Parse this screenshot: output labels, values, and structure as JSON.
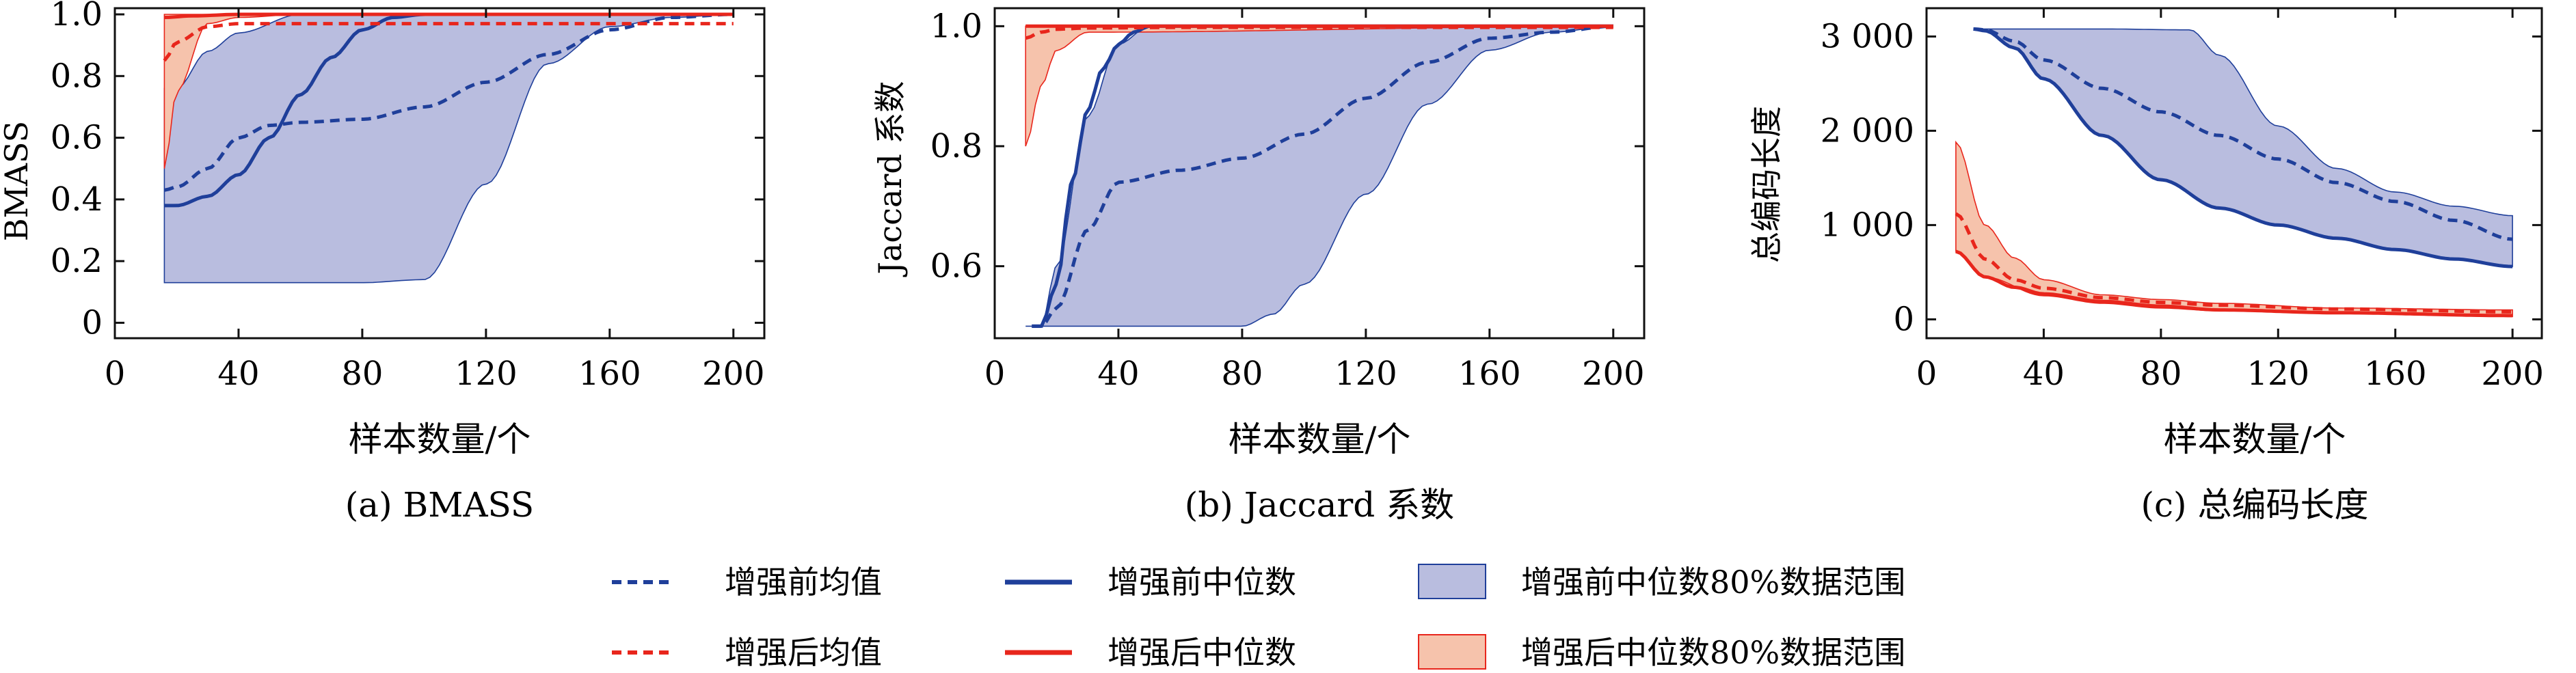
{
  "legend": [
    {
      "key": "before_mean",
      "label": "增强前均值",
      "style": "dash",
      "color": "#1f3f9a"
    },
    {
      "key": "before_median",
      "label": "增强前中位数",
      "style": "solid",
      "color": "#1f3f9a"
    },
    {
      "key": "before_band",
      "label": "增强前中位数80%数据范围",
      "style": "band",
      "color": "#1f3f9a",
      "fill": "#b9bddf"
    },
    {
      "key": "after_mean",
      "label": "增强后均值",
      "style": "dash",
      "color": "#e8261c"
    },
    {
      "key": "after_median",
      "label": "增强后中位数",
      "style": "solid",
      "color": "#e8261c"
    },
    {
      "key": "after_band",
      "label": "增强后中位数80%数据范围",
      "style": "band",
      "color": "#e8261c",
      "fill": "#f6c3ac"
    }
  ],
  "chart_data": [
    {
      "type": "line",
      "caption": "(a) BMASS",
      "xlabel": "样本数量/个",
      "ylabel": "BMASS",
      "xlim": [
        0,
        210
      ],
      "ylim": [
        -0.05,
        1.02
      ],
      "xticks": [
        0,
        40,
        80,
        120,
        160,
        200
      ],
      "xtick_labels": [
        "0",
        "40",
        "80",
        "120",
        "160",
        "200"
      ],
      "yticks": [
        0,
        0.2,
        0.4,
        0.6,
        0.8,
        1.0
      ],
      "ytick_labels": [
        "0",
        "0.2",
        "0.4",
        "0.6",
        "0.8",
        "1.0"
      ],
      "series": [
        {
          "key": "before_band",
          "lower": {
            "x": [
              16,
              40,
              80,
              100,
              120,
              140,
              160,
              180,
              200
            ],
            "y": [
              0.13,
              0.13,
              0.13,
              0.14,
              0.45,
              0.84,
              0.96,
              0.99,
              1.0
            ]
          },
          "upper": {
            "x": [
              16,
              20,
              30,
              40,
              60,
              80,
              200
            ],
            "y": [
              0.76,
              0.76,
              0.88,
              0.94,
              1.0,
              1.0,
              1.0
            ]
          }
        },
        {
          "key": "after_band",
          "lower": {
            "x": [
              16,
              20,
              30,
              40,
              60,
              200
            ],
            "y": [
              0.5,
              0.75,
              0.97,
              0.99,
              1.0,
              1.0
            ]
          },
          "upper": {
            "x": [
              16,
              30,
              60,
              200
            ],
            "y": [
              1.0,
              1.0,
              1.0,
              1.0
            ]
          }
        },
        {
          "key": "before_median",
          "x": [
            16,
            20,
            30,
            40,
            50,
            60,
            70,
            80,
            90,
            100,
            120,
            160,
            200
          ],
          "y": [
            0.38,
            0.38,
            0.41,
            0.48,
            0.6,
            0.74,
            0.86,
            0.95,
            0.99,
            1.0,
            1.0,
            1.0,
            1.0
          ]
        },
        {
          "key": "before_mean",
          "x": [
            16,
            20,
            30,
            40,
            50,
            60,
            80,
            100,
            120,
            140,
            160,
            180,
            200
          ],
          "y": [
            0.43,
            0.44,
            0.5,
            0.6,
            0.64,
            0.65,
            0.66,
            0.7,
            0.78,
            0.87,
            0.95,
            0.99,
            1.0
          ]
        },
        {
          "key": "after_median",
          "x": [
            16,
            25,
            40,
            60,
            100,
            200
          ],
          "y": [
            0.99,
            0.995,
            1.0,
            1.0,
            1.0,
            1.0
          ]
        },
        {
          "key": "after_mean",
          "x": [
            16,
            20,
            30,
            40,
            60,
            100,
            200
          ],
          "y": [
            0.85,
            0.91,
            0.96,
            0.97,
            0.97,
            0.97,
            0.97
          ]
        }
      ]
    },
    {
      "type": "line",
      "caption": "(b) Jaccard 系数",
      "xlabel": "样本数量/个",
      "ylabel": "Jaccard 系数",
      "xlim": [
        0,
        210
      ],
      "ylim": [
        0.48,
        1.03
      ],
      "xticks": [
        0,
        40,
        80,
        120,
        160,
        200
      ],
      "xtick_labels": [
        "0",
        "40",
        "80",
        "120",
        "160",
        "200"
      ],
      "yticks": [
        0.6,
        0.8,
        1.0
      ],
      "ytick_labels": [
        "0.6",
        "0.8",
        "1.0"
      ],
      "series": [
        {
          "key": "before_band",
          "lower": {
            "x": [
              10,
              20,
              40,
              60,
              80,
              90,
              100,
              120,
              140,
              160,
              180,
              200
            ],
            "y": [
              0.5,
              0.5,
              0.5,
              0.5,
              0.5,
              0.52,
              0.57,
              0.72,
              0.87,
              0.96,
              0.99,
              1.0
            ]
          },
          "upper": {
            "x": [
              10,
              15,
              20,
              30,
              40,
              50,
              60,
              200
            ],
            "y": [
              0.5,
              0.5,
              0.6,
              0.85,
              0.97,
              1.0,
              1.0,
              1.0
            ]
          }
        },
        {
          "key": "after_band",
          "lower": {
            "x": [
              10,
              15,
              20,
              30,
              200
            ],
            "y": [
              0.8,
              0.9,
              0.96,
              0.99,
              1.0
            ]
          },
          "upper": {
            "x": [
              10,
              200
            ],
            "y": [
              1.0,
              1.0
            ]
          }
        },
        {
          "key": "before_median",
          "x": [
            12,
            15,
            20,
            25,
            30,
            35,
            40,
            45,
            50,
            60,
            200
          ],
          "y": [
            0.5,
            0.5,
            0.57,
            0.74,
            0.86,
            0.93,
            0.97,
            0.99,
            1.0,
            1.0,
            1.0
          ]
        },
        {
          "key": "before_mean",
          "x": [
            12,
            15,
            20,
            30,
            40,
            60,
            80,
            100,
            120,
            140,
            160,
            180,
            200
          ],
          "y": [
            0.5,
            0.5,
            0.53,
            0.66,
            0.74,
            0.76,
            0.78,
            0.82,
            0.88,
            0.94,
            0.98,
            0.99,
            1.0
          ]
        },
        {
          "key": "after_median",
          "x": [
            10,
            200
          ],
          "y": [
            1.0,
            1.0
          ]
        },
        {
          "key": "after_mean",
          "x": [
            10,
            15,
            20,
            30,
            60,
            200
          ],
          "y": [
            0.98,
            0.99,
            0.995,
            0.997,
            0.998,
            0.998
          ]
        }
      ]
    },
    {
      "type": "line",
      "caption": "(c) 总编码长度",
      "xlabel": "样本数量/个",
      "ylabel": "总编码长度",
      "xlim": [
        0,
        210
      ],
      "ylim": [
        -200,
        3300
      ],
      "xticks": [
        0,
        40,
        80,
        120,
        160,
        200
      ],
      "xtick_labels": [
        "0",
        "40",
        "80",
        "120",
        "160",
        "200"
      ],
      "yticks": [
        0,
        1000,
        2000,
        3000
      ],
      "ytick_labels": [
        "0",
        "1 000",
        "2 000",
        "3 000"
      ],
      "series": [
        {
          "key": "before_band",
          "lower": {
            "x": [
              16,
              20,
              30,
              40,
              60,
              80,
              100,
              120,
              140,
              160,
              180,
              200
            ],
            "y": [
              3080,
              3060,
              2880,
              2550,
              1950,
              1480,
              1180,
              1000,
              860,
              740,
              640,
              560
            ]
          },
          "upper": {
            "x": [
              16,
              60,
              90,
              100,
              120,
              140,
              160,
              180,
              200
            ],
            "y": [
              3080,
              3080,
              3070,
              2800,
              2050,
              1600,
              1350,
              1200,
              1100
            ]
          }
        },
        {
          "key": "after_band",
          "lower": {
            "x": [
              10,
              20,
              40,
              60,
              80,
              100,
              140,
              200
            ],
            "y": [
              720,
              450,
              250,
              170,
              120,
              90,
              60,
              30
            ]
          },
          "upper": {
            "x": [
              10,
              20,
              30,
              40,
              60,
              80,
              100,
              140,
              200
            ],
            "y": [
              1880,
              1000,
              650,
              420,
              260,
              210,
              170,
              120,
              100
            ]
          }
        },
        {
          "key": "before_median",
          "x": [
            16,
            20,
            30,
            40,
            60,
            80,
            100,
            120,
            140,
            160,
            180,
            200
          ],
          "y": [
            3080,
            3060,
            2880,
            2550,
            1950,
            1480,
            1180,
            1000,
            860,
            740,
            640,
            560
          ]
        },
        {
          "key": "before_mean",
          "x": [
            16,
            20,
            30,
            40,
            60,
            80,
            100,
            120,
            140,
            160,
            180,
            200
          ],
          "y": [
            3080,
            3070,
            2950,
            2750,
            2450,
            2200,
            1950,
            1700,
            1450,
            1250,
            1050,
            850
          ]
        },
        {
          "key": "after_median",
          "x": [
            10,
            20,
            30,
            40,
            60,
            80,
            100,
            140,
            200
          ],
          "y": [
            720,
            450,
            340,
            270,
            190,
            140,
            100,
            70,
            40
          ]
        },
        {
          "key": "after_mean",
          "x": [
            10,
            20,
            30,
            40,
            60,
            80,
            100,
            140,
            200
          ],
          "y": [
            1120,
            640,
            420,
            330,
            230,
            180,
            150,
            110,
            80
          ]
        }
      ]
    }
  ]
}
